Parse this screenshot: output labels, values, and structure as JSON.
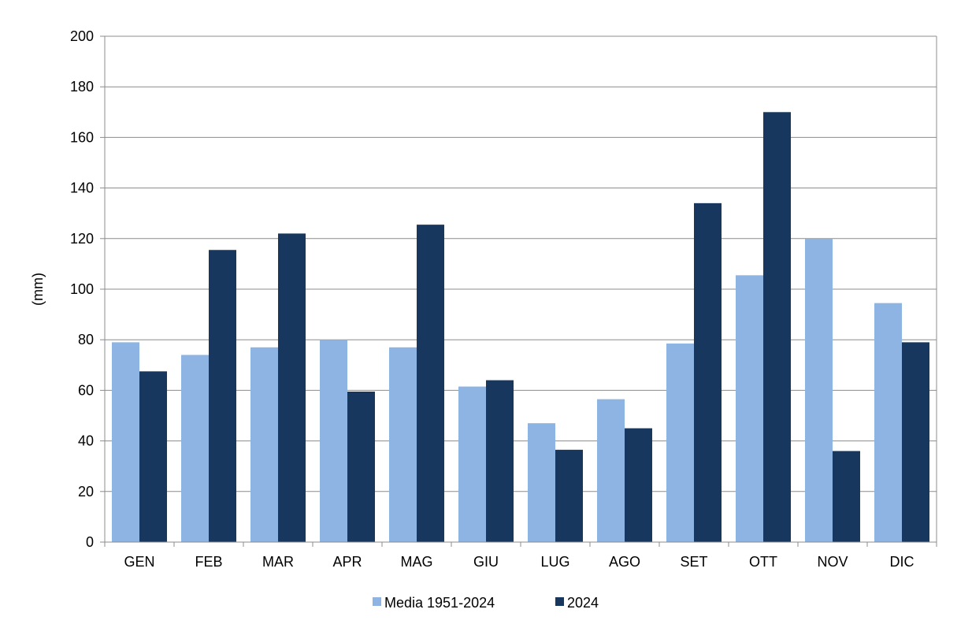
{
  "chart_data": {
    "type": "bar",
    "title": "",
    "xlabel": "",
    "ylabel": "(mm)",
    "ylim": [
      0,
      200
    ],
    "yticks": [
      0,
      20,
      40,
      60,
      80,
      100,
      120,
      140,
      160,
      180,
      200
    ],
    "categories": [
      "GEN",
      "FEB",
      "MAR",
      "APR",
      "MAG",
      "GIU",
      "LUG",
      "AGO",
      "SET",
      "OTT",
      "NOV",
      "DIC"
    ],
    "series": [
      {
        "name": "Media 1951-2024",
        "color": "#8EB4E3",
        "values": [
          79,
          74,
          77,
          80,
          77,
          61.5,
          47,
          56.5,
          78.5,
          105.5,
          120,
          94.5
        ]
      },
      {
        "name": "2024",
        "color": "#17375E",
        "values": [
          67.5,
          115.5,
          122,
          59.5,
          125.5,
          64,
          36.5,
          45,
          134,
          170,
          36,
          79
        ]
      }
    ],
    "grid": true,
    "legend_position": "bottom"
  }
}
